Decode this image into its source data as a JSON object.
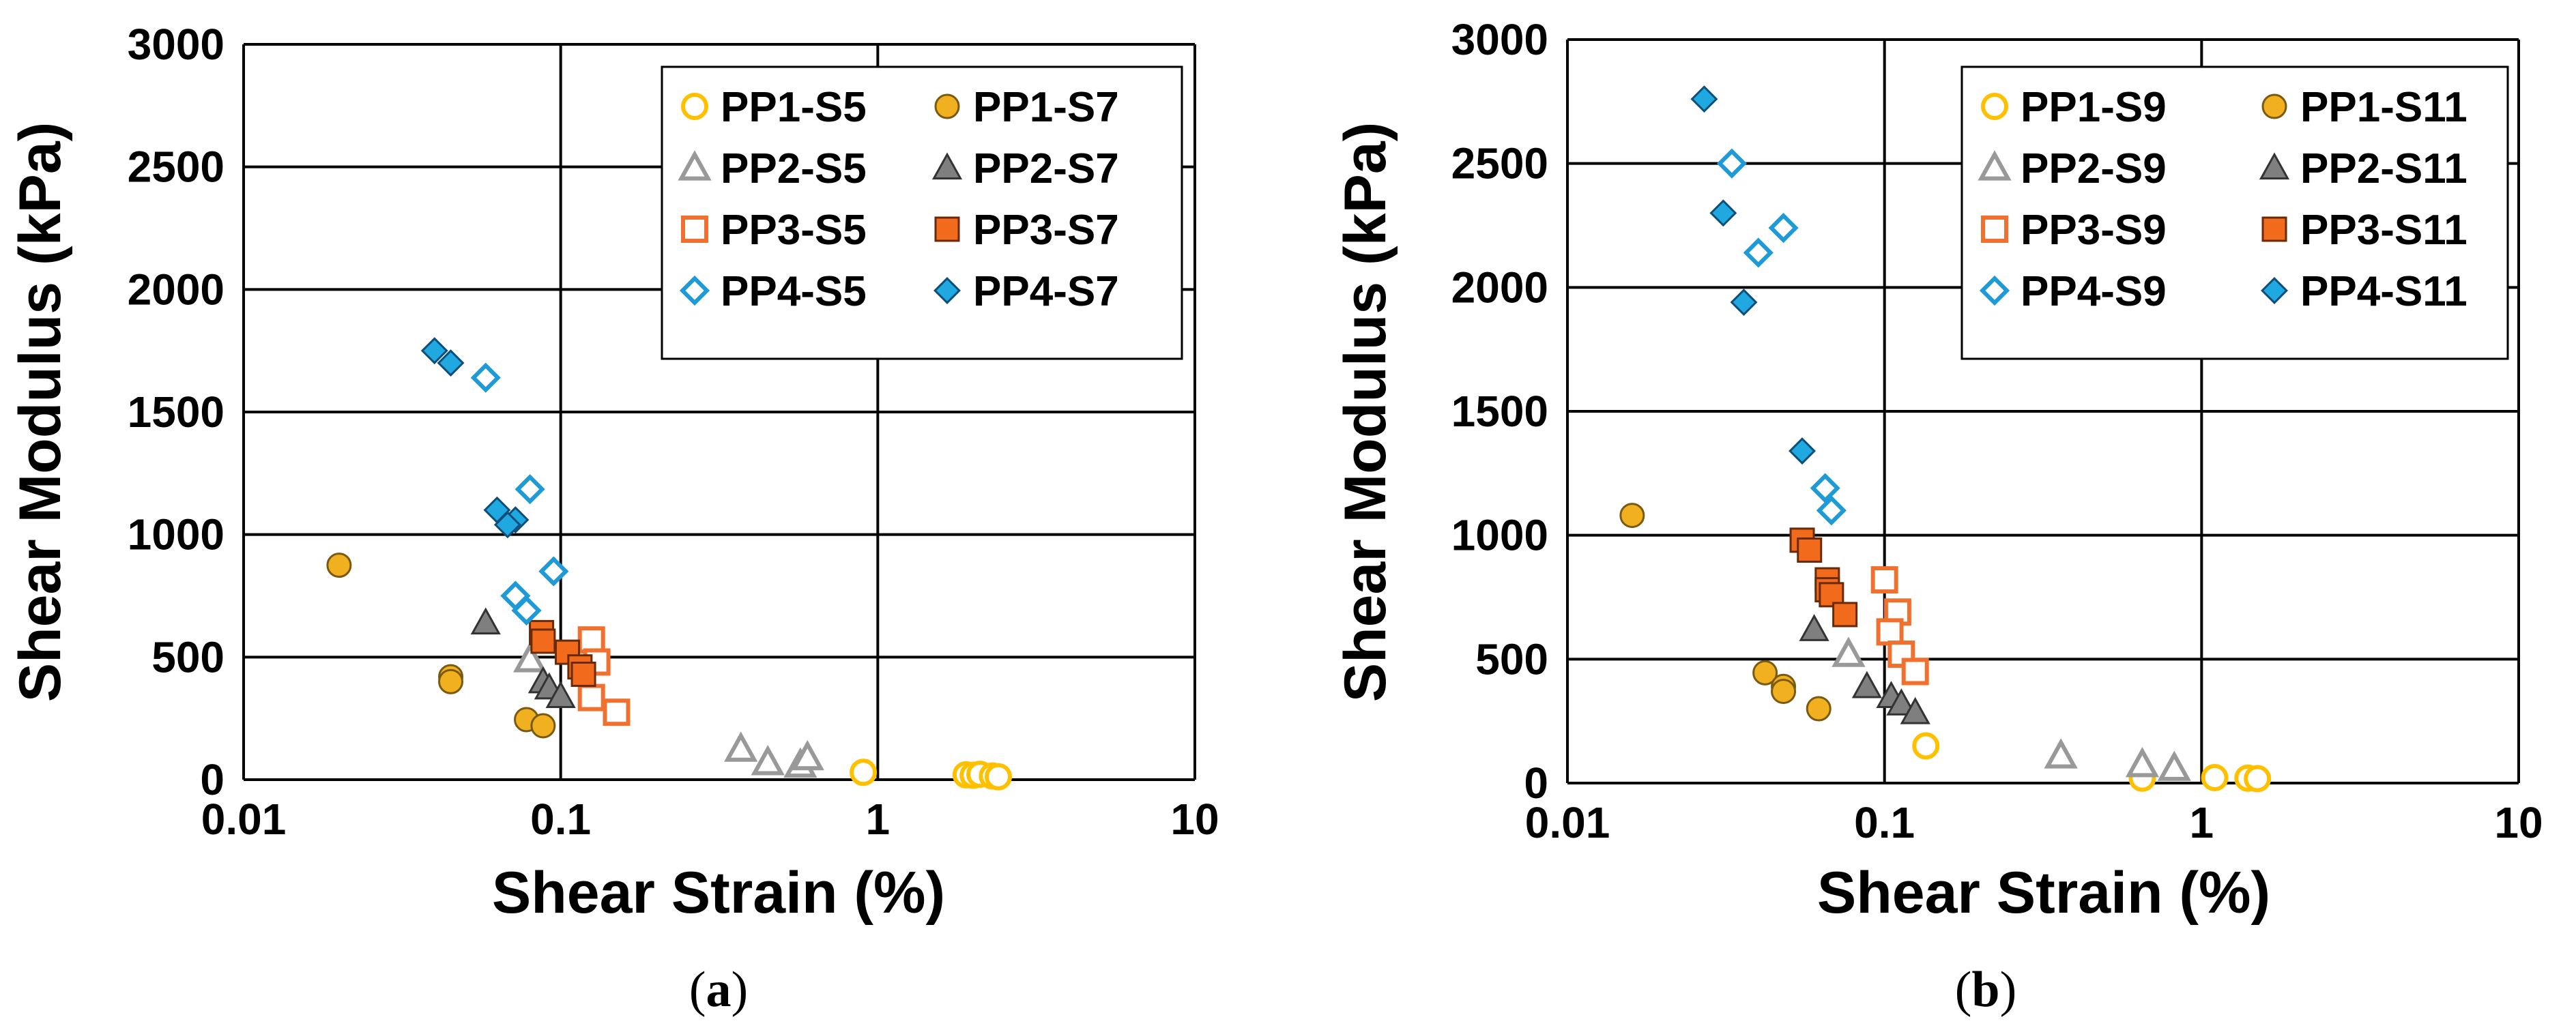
{
  "colors": {
    "pp1": "#FFC000",
    "pp1_fill": "#F0B020",
    "pp2": "#999999",
    "pp2_fill": "#7F7F7F",
    "pp3": "#F07030",
    "pp3_fill": "#F26B1D",
    "pp4": "#1E9AD6",
    "pp4_fill": "#20A8E0",
    "grid": "#000000"
  },
  "chart_data": [
    {
      "type": "scatter",
      "panel_label": "a",
      "xlabel": "Shear Strain (%)",
      "ylabel": "Shear Modulus (kPa)",
      "xscale": "log",
      "xlim": [
        0.01,
        10
      ],
      "ylim": [
        0,
        3000
      ],
      "x_ticks": [
        "0.01",
        "0.1",
        "1",
        "10"
      ],
      "y_ticks": [
        "0",
        "500",
        "1000",
        "1500",
        "2000",
        "2500",
        "3000"
      ],
      "grid": true,
      "legend_position": "top-right",
      "series": [
        {
          "name": "PP1-S5",
          "group": "pp1",
          "marker": "circle",
          "filled": false,
          "points": [
            [
              0.9,
              30
            ],
            [
              1.9,
              20
            ],
            [
              2.0,
              18
            ],
            [
              2.1,
              22
            ],
            [
              2.3,
              15
            ],
            [
              2.4,
              12
            ]
          ]
        },
        {
          "name": "PP1-S7",
          "group": "pp1",
          "marker": "circle",
          "filled": true,
          "points": [
            [
              0.02,
              875
            ],
            [
              0.045,
              420
            ],
            [
              0.045,
              400
            ],
            [
              0.078,
              245
            ],
            [
              0.088,
              220
            ]
          ]
        },
        {
          "name": "PP2-S5",
          "group": "pp2",
          "marker": "triangle",
          "filled": false,
          "points": [
            [
              0.08,
              490
            ],
            [
              0.37,
              125
            ],
            [
              0.45,
              70
            ],
            [
              0.57,
              60
            ],
            [
              0.6,
              90
            ]
          ]
        },
        {
          "name": "PP2-S7",
          "group": "pp2",
          "marker": "triangle",
          "filled": true,
          "points": [
            [
              0.058,
              640
            ],
            [
              0.088,
              400
            ],
            [
              0.092,
              375
            ],
            [
              0.1,
              340
            ]
          ]
        },
        {
          "name": "PP3-S5",
          "group": "pp3",
          "marker": "square",
          "filled": false,
          "points": [
            [
              0.125,
              570
            ],
            [
              0.13,
              480
            ],
            [
              0.125,
              335
            ],
            [
              0.15,
              275
            ]
          ]
        },
        {
          "name": "PP3-S7",
          "group": "pp3",
          "marker": "square",
          "filled": true,
          "points": [
            [
              0.087,
              600
            ],
            [
              0.088,
              565
            ],
            [
              0.105,
              520
            ],
            [
              0.115,
              460
            ],
            [
              0.118,
              430
            ]
          ]
        },
        {
          "name": "PP4-S5",
          "group": "pp4",
          "marker": "diamond",
          "filled": false,
          "points": [
            [
              0.058,
              1640
            ],
            [
              0.08,
              1185
            ],
            [
              0.095,
              850
            ],
            [
              0.072,
              750
            ],
            [
              0.078,
              690
            ]
          ]
        },
        {
          "name": "PP4-S7",
          "group": "pp4",
          "marker": "diamond",
          "filled": true,
          "points": [
            [
              0.04,
              1750
            ],
            [
              0.045,
              1700
            ],
            [
              0.063,
              1100
            ],
            [
              0.072,
              1060
            ],
            [
              0.068,
              1040
            ]
          ]
        }
      ]
    },
    {
      "type": "scatter",
      "panel_label": "b",
      "xlabel": "Shear Strain (%)",
      "ylabel": "Shear Modulus (kPa)",
      "xscale": "log",
      "xlim": [
        0.01,
        10
      ],
      "ylim": [
        0,
        3000
      ],
      "x_ticks": [
        "0.01",
        "0.1",
        "1",
        "10"
      ],
      "y_ticks": [
        "0",
        "500",
        "1000",
        "1500",
        "2000",
        "2500",
        "3000"
      ],
      "grid": true,
      "legend_position": "top-right",
      "series": [
        {
          "name": "PP1-S9",
          "group": "pp1",
          "marker": "circle",
          "filled": false,
          "points": [
            [
              0.135,
              150
            ],
            [
              0.65,
              20
            ],
            [
              1.1,
              22
            ],
            [
              1.4,
              20
            ],
            [
              1.5,
              18
            ]
          ]
        },
        {
          "name": "PP1-S11",
          "group": "pp1",
          "marker": "circle",
          "filled": true,
          "points": [
            [
              0.016,
              1080
            ],
            [
              0.042,
              445
            ],
            [
              0.048,
              390
            ],
            [
              0.048,
              370
            ],
            [
              0.062,
              300
            ]
          ]
        },
        {
          "name": "PP2-S9",
          "group": "pp2",
          "marker": "triangle",
          "filled": false,
          "points": [
            [
              0.077,
              520
            ],
            [
              0.36,
              110
            ],
            [
              0.65,
              75
            ],
            [
              0.82,
              60
            ]
          ]
        },
        {
          "name": "PP2-S11",
          "group": "pp2",
          "marker": "triangle",
          "filled": true,
          "points": [
            [
              0.06,
              620
            ],
            [
              0.088,
              390
            ],
            [
              0.105,
              350
            ],
            [
              0.113,
              320
            ],
            [
              0.125,
              285
            ]
          ]
        },
        {
          "name": "PP3-S9",
          "group": "pp3",
          "marker": "square",
          "filled": false,
          "points": [
            [
              0.1,
              820
            ],
            [
              0.11,
              690
            ],
            [
              0.104,
              610
            ],
            [
              0.113,
              520
            ],
            [
              0.125,
              450
            ]
          ]
        },
        {
          "name": "PP3-S11",
          "group": "pp3",
          "marker": "square",
          "filled": true,
          "points": [
            [
              0.055,
              980
            ],
            [
              0.058,
              940
            ],
            [
              0.066,
              820
            ],
            [
              0.066,
              780
            ],
            [
              0.068,
              760
            ],
            [
              0.075,
              680
            ]
          ]
        },
        {
          "name": "PP4-S9",
          "group": "pp4",
          "marker": "diamond",
          "filled": false,
          "points": [
            [
              0.033,
              2500
            ],
            [
              0.048,
              2240
            ],
            [
              0.04,
              2140
            ],
            [
              0.065,
              1190
            ],
            [
              0.068,
              1100
            ]
          ]
        },
        {
          "name": "PP4-S11",
          "group": "pp4",
          "marker": "diamond",
          "filled": true,
          "points": [
            [
              0.027,
              2760
            ],
            [
              0.031,
              2300
            ],
            [
              0.036,
              1940
            ],
            [
              0.055,
              1340
            ]
          ]
        }
      ]
    }
  ]
}
